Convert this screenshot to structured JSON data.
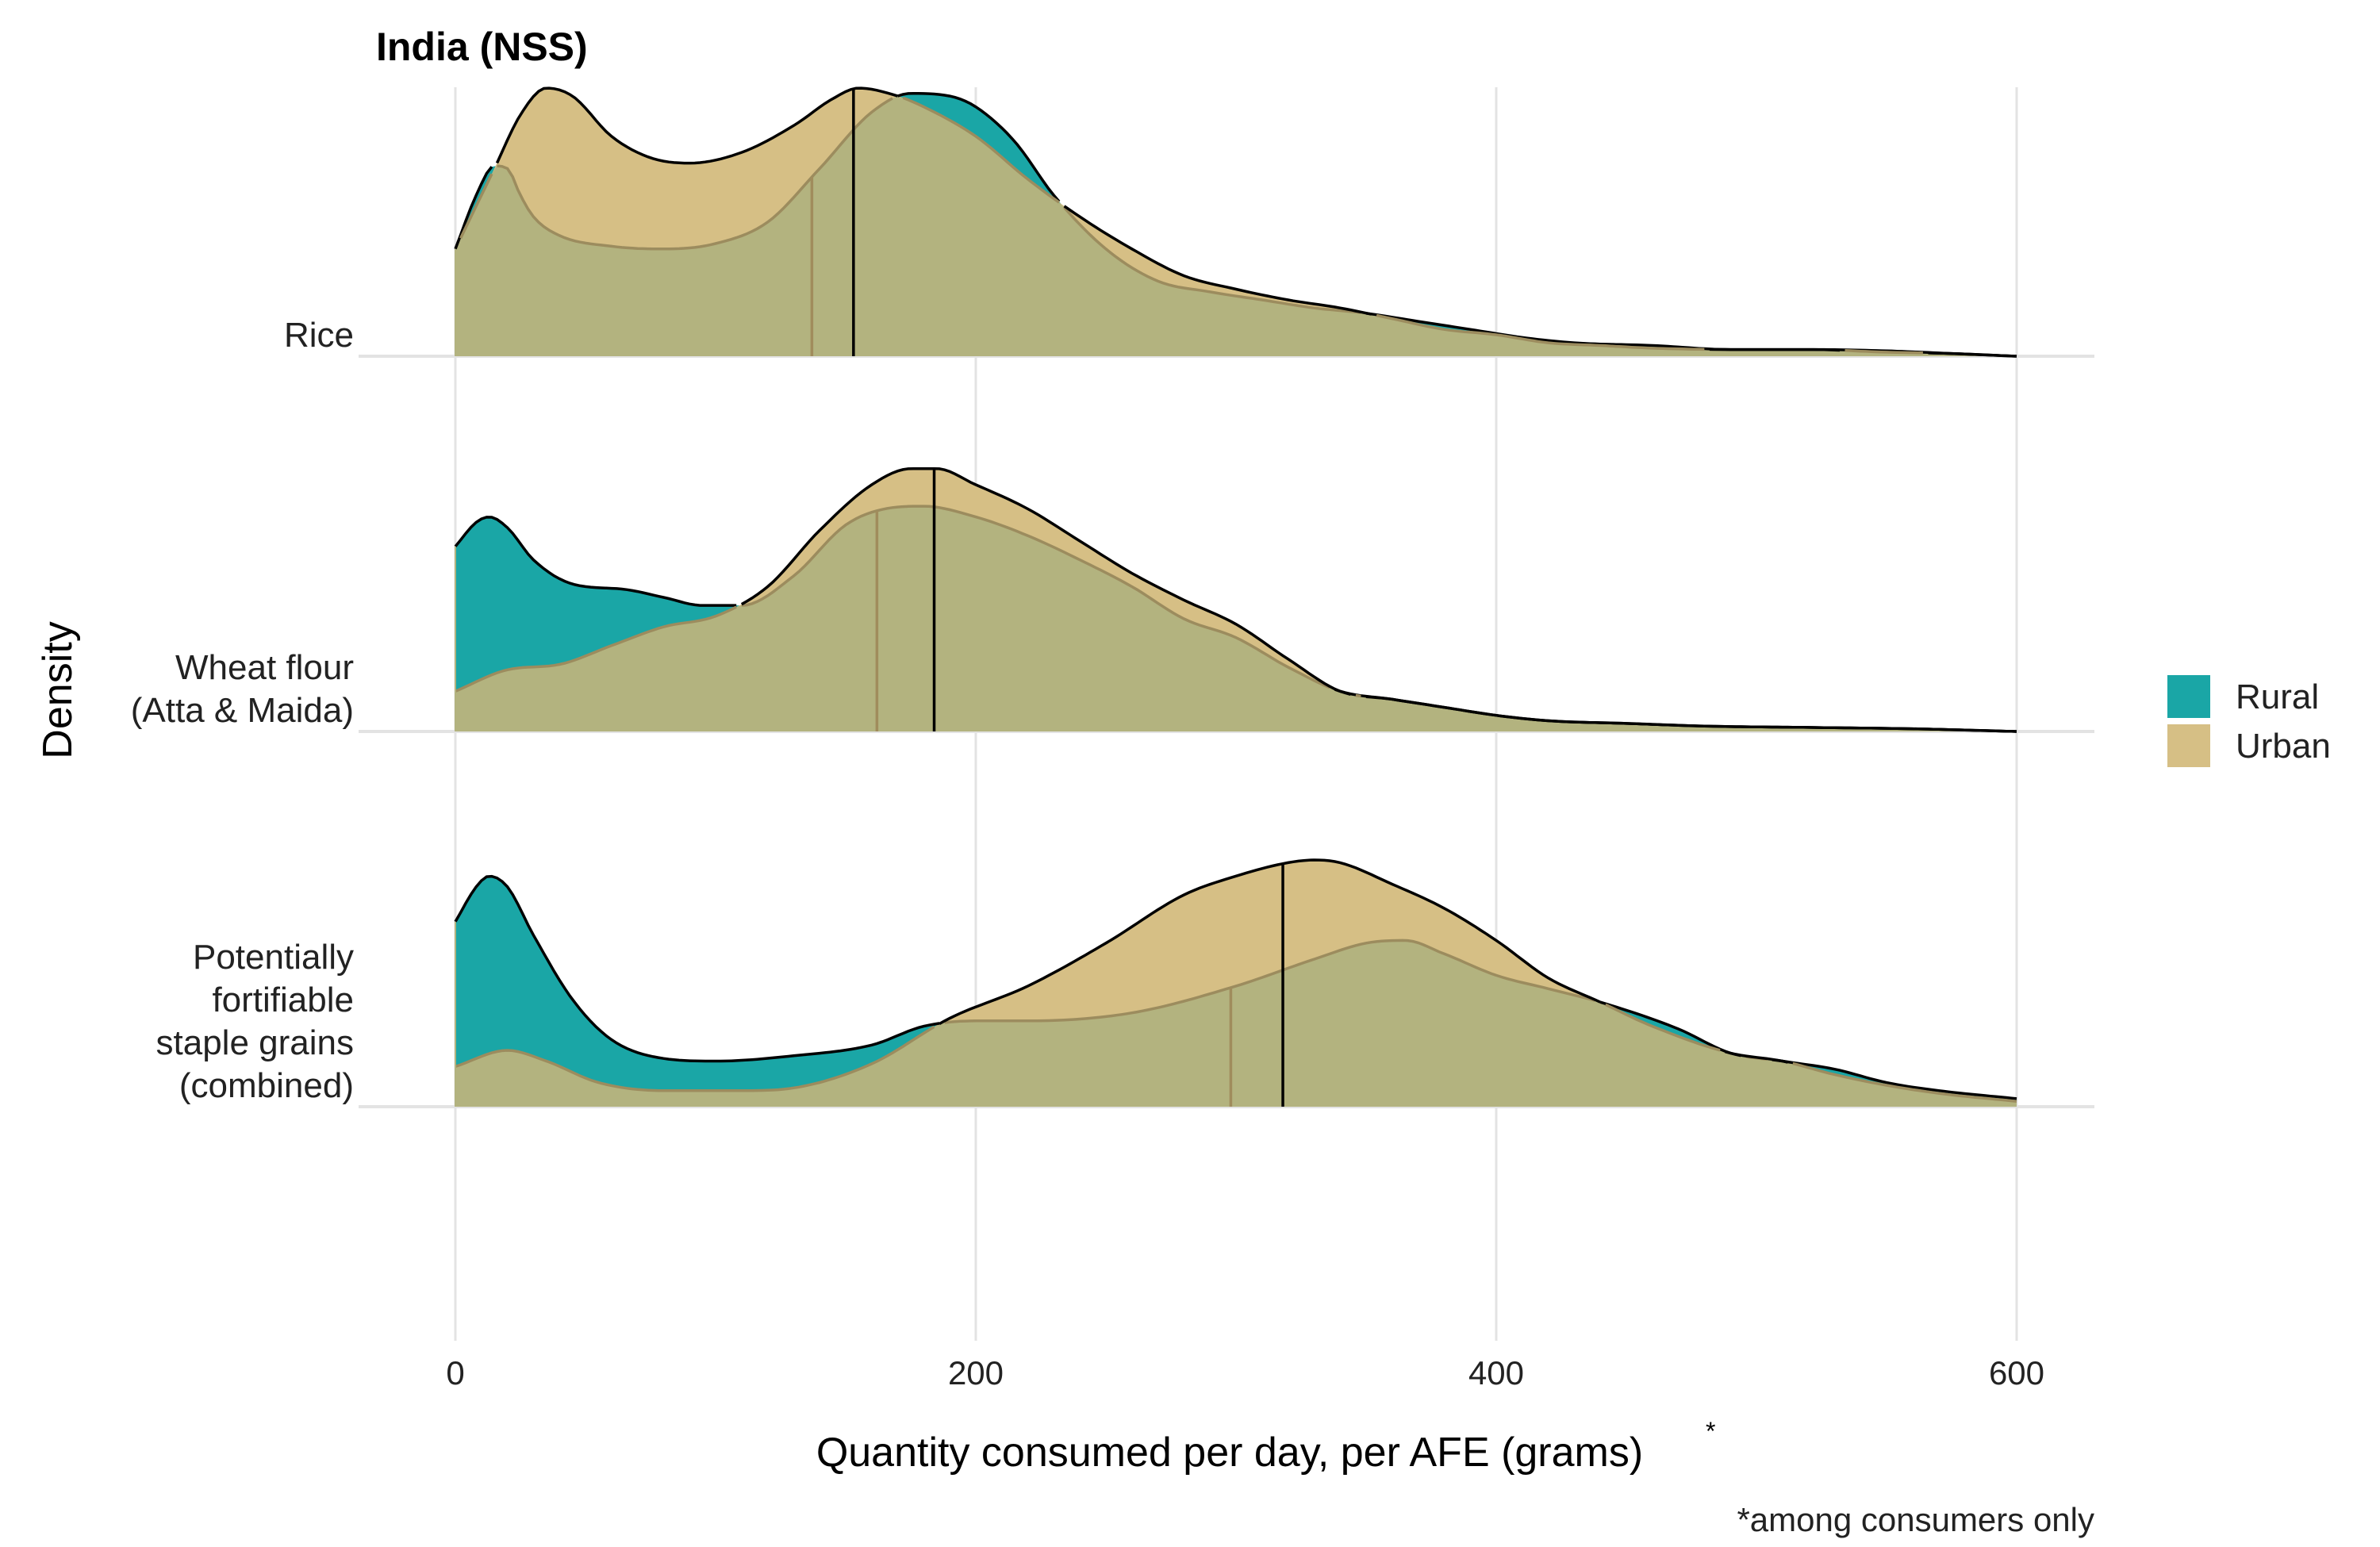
{
  "chart_data": {
    "type": "area",
    "subtype": "ridgeline-density",
    "title": "India (NSS)",
    "xlabel": "Quantity consumed per day, per AFE (grams)",
    "xlabel_superscript": "*",
    "ylabel": "Density",
    "caption": "*among consumers only",
    "xlim": [
      0,
      600
    ],
    "x_ticks": [
      0,
      200,
      400,
      600
    ],
    "grid": "vertical",
    "legend": {
      "position": "right",
      "items": [
        {
          "name": "Rural",
          "color": "#1aa6a6"
        },
        {
          "name": "Urban",
          "color": "#d6bf85"
        }
      ]
    },
    "series_colors": {
      "Rural": "#1aa6a6",
      "Urban": "#d6bf85",
      "overlap": "#b3b37f"
    },
    "rows": [
      {
        "label_lines": [
          "Rice"
        ],
        "median": {
          "Rural": 137,
          "Urban": 153
        },
        "series": [
          {
            "name": "Rural",
            "points": [
              [
                0,
                0.4
              ],
              [
                8,
                0.6
              ],
              [
                15,
                0.71
              ],
              [
                20,
                0.7
              ],
              [
                25,
                0.6
              ],
              [
                30,
                0.52
              ],
              [
                40,
                0.45
              ],
              [
                60,
                0.41
              ],
              [
                80,
                0.4
              ],
              [
                100,
                0.42
              ],
              [
                120,
                0.5
              ],
              [
                140,
                0.7
              ],
              [
                160,
                0.91
              ],
              [
                175,
                0.98
              ],
              [
                190,
                0.97
              ],
              [
                200,
                0.93
              ],
              [
                215,
                0.8
              ],
              [
                230,
                0.6
              ],
              [
                250,
                0.4
              ],
              [
                270,
                0.28
              ],
              [
                290,
                0.24
              ],
              [
                310,
                0.21
              ],
              [
                330,
                0.18
              ],
              [
                350,
                0.16
              ],
              [
                370,
                0.13
              ],
              [
                390,
                0.1
              ],
              [
                410,
                0.07
              ],
              [
                430,
                0.05
              ],
              [
                460,
                0.04
              ],
              [
                490,
                0.025
              ],
              [
                520,
                0.025
              ],
              [
                550,
                0.02
              ],
              [
                575,
                0.01
              ],
              [
                600,
                0.0
              ]
            ]
          },
          {
            "name": "Urban",
            "points": [
              [
                0,
                0.4
              ],
              [
                15,
                0.7
              ],
              [
                25,
                0.9
              ],
              [
                35,
                1.0
              ],
              [
                45,
                0.97
              ],
              [
                60,
                0.82
              ],
              [
                75,
                0.74
              ],
              [
                90,
                0.72
              ],
              [
                110,
                0.76
              ],
              [
                130,
                0.86
              ],
              [
                145,
                0.96
              ],
              [
                155,
                1.0
              ],
              [
                170,
                0.97
              ],
              [
                180,
                0.93
              ],
              [
                200,
                0.82
              ],
              [
                220,
                0.66
              ],
              [
                240,
                0.52
              ],
              [
                260,
                0.4
              ],
              [
                280,
                0.3
              ],
              [
                300,
                0.25
              ],
              [
                320,
                0.21
              ],
              [
                340,
                0.18
              ],
              [
                360,
                0.14
              ],
              [
                380,
                0.1
              ],
              [
                400,
                0.08
              ],
              [
                420,
                0.05
              ],
              [
                440,
                0.04
              ],
              [
                460,
                0.03
              ],
              [
                490,
                0.025
              ],
              [
                520,
                0.025
              ],
              [
                550,
                0.015
              ],
              [
                575,
                0.01
              ],
              [
                600,
                0.0
              ]
            ]
          }
        ]
      },
      {
        "label_lines": [
          "Wheat flour",
          "(Atta & Maida)"
        ],
        "median": {
          "Rural": 162,
          "Urban": 184
        },
        "series": [
          {
            "name": "Rural",
            "points": [
              [
                0,
                0.69
              ],
              [
                8,
                0.78
              ],
              [
                13,
                0.8
              ],
              [
                20,
                0.76
              ],
              [
                30,
                0.64
              ],
              [
                45,
                0.55
              ],
              [
                65,
                0.53
              ],
              [
                80,
                0.5
              ],
              [
                95,
                0.47
              ],
              [
                110,
                0.47
              ],
              [
                130,
                0.58
              ],
              [
                150,
                0.77
              ],
              [
                165,
                0.83
              ],
              [
                180,
                0.84
              ],
              [
                200,
                0.8
              ],
              [
                220,
                0.73
              ],
              [
                240,
                0.64
              ],
              [
                260,
                0.54
              ],
              [
                280,
                0.42
              ],
              [
                300,
                0.35
              ],
              [
                320,
                0.24
              ],
              [
                340,
                0.15
              ],
              [
                360,
                0.12
              ],
              [
                380,
                0.09
              ],
              [
                400,
                0.06
              ],
              [
                420,
                0.04
              ],
              [
                450,
                0.03
              ],
              [
                480,
                0.02
              ],
              [
                520,
                0.015
              ],
              [
                560,
                0.01
              ],
              [
                600,
                0.0
              ]
            ]
          },
          {
            "name": "Urban",
            "points": [
              [
                0,
                0.15
              ],
              [
                20,
                0.23
              ],
              [
                40,
                0.25
              ],
              [
                60,
                0.32
              ],
              [
                80,
                0.39
              ],
              [
                100,
                0.43
              ],
              [
                120,
                0.54
              ],
              [
                140,
                0.75
              ],
              [
                160,
                0.92
              ],
              [
                175,
                0.98
              ],
              [
                185,
                0.98
              ],
              [
                200,
                0.92
              ],
              [
                220,
                0.83
              ],
              [
                240,
                0.71
              ],
              [
                260,
                0.59
              ],
              [
                280,
                0.49
              ],
              [
                300,
                0.4
              ],
              [
                320,
                0.27
              ],
              [
                340,
                0.15
              ],
              [
                360,
                0.12
              ],
              [
                380,
                0.09
              ],
              [
                400,
                0.06
              ],
              [
                420,
                0.04
              ],
              [
                450,
                0.03
              ],
              [
                480,
                0.02
              ],
              [
                520,
                0.015
              ],
              [
                560,
                0.01
              ],
              [
                600,
                0.0
              ]
            ]
          }
        ]
      },
      {
        "label_lines": [
          "Potentially",
          "fortifiable",
          "staple grains",
          "(combined)"
        ],
        "median": {
          "Rural": 298,
          "Urban": 318
        },
        "series": [
          {
            "name": "Rural",
            "points": [
              [
                0,
                0.69
              ],
              [
                8,
                0.82
              ],
              [
                13,
                0.86
              ],
              [
                20,
                0.82
              ],
              [
                30,
                0.64
              ],
              [
                45,
                0.4
              ],
              [
                60,
                0.25
              ],
              [
                80,
                0.18
              ],
              [
                100,
                0.17
              ],
              [
                130,
                0.19
              ],
              [
                160,
                0.23
              ],
              [
                180,
                0.3
              ],
              [
                200,
                0.32
              ],
              [
                220,
                0.32
              ],
              [
                260,
                0.35
              ],
              [
                300,
                0.45
              ],
              [
                330,
                0.55
              ],
              [
                350,
                0.61
              ],
              [
                365,
                0.62
              ],
              [
                380,
                0.57
              ],
              [
                400,
                0.49
              ],
              [
                420,
                0.44
              ],
              [
                440,
                0.39
              ],
              [
                470,
                0.29
              ],
              [
                490,
                0.2
              ],
              [
                510,
                0.17
              ],
              [
                530,
                0.14
              ],
              [
                550,
                0.09
              ],
              [
                570,
                0.06
              ],
              [
                600,
                0.03
              ]
            ]
          },
          {
            "name": "Urban",
            "points": [
              [
                0,
                0.15
              ],
              [
                20,
                0.21
              ],
              [
                35,
                0.17
              ],
              [
                55,
                0.09
              ],
              [
                80,
                0.06
              ],
              [
                110,
                0.06
              ],
              [
                130,
                0.07
              ],
              [
                160,
                0.16
              ],
              [
                190,
                0.33
              ],
              [
                220,
                0.45
              ],
              [
                250,
                0.61
              ],
              [
                280,
                0.79
              ],
              [
                300,
                0.86
              ],
              [
                320,
                0.91
              ],
              [
                330,
                0.92
              ],
              [
                340,
                0.91
              ],
              [
                360,
                0.83
              ],
              [
                380,
                0.74
              ],
              [
                400,
                0.62
              ],
              [
                420,
                0.48
              ],
              [
                440,
                0.39
              ],
              [
                460,
                0.3
              ],
              [
                490,
                0.2
              ],
              [
                510,
                0.17
              ],
              [
                530,
                0.12
              ],
              [
                550,
                0.08
              ],
              [
                570,
                0.05
              ],
              [
                600,
                0.02
              ]
            ]
          }
        ]
      }
    ]
  }
}
